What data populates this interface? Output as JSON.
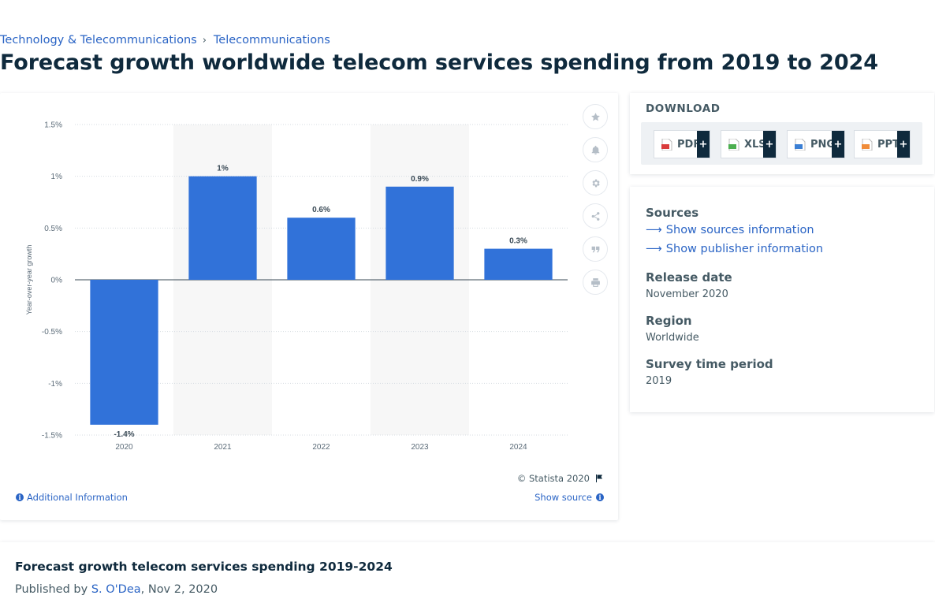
{
  "breadcrumb": {
    "items": [
      "Technology & Telecommunications",
      "Telecommunications"
    ],
    "separator": "›"
  },
  "page_title": "Forecast growth worldwide telecom services spending from 2019 to 2024",
  "chart_data": {
    "type": "bar",
    "categories": [
      "2020",
      "2021",
      "2022",
      "2023",
      "2024"
    ],
    "values": [
      -1.4,
      1.0,
      0.6,
      0.9,
      0.3
    ],
    "data_labels": [
      "-1.4%",
      "1%",
      "0.6%",
      "0.9%",
      "0.3%"
    ],
    "title": "",
    "xlabel": "",
    "ylabel": "Year-over-year growth",
    "ylim": [
      -1.5,
      1.5
    ],
    "yticks": [
      1.5,
      1.0,
      0.5,
      0.0,
      -0.5,
      -1.0,
      -1.5
    ],
    "ytick_labels": [
      "1.5%",
      "1%",
      "0.5%",
      "0%",
      "-0.5%",
      "-1%",
      "-1.5%"
    ],
    "grid": true,
    "bar_color": "#3172d9",
    "band_color": "#f7f7f7"
  },
  "chart_card": {
    "copyright": "© Statista 2020",
    "additional_info": "Additional Information",
    "show_source": "Show source",
    "tools": [
      "star-icon",
      "bell-icon",
      "gear-icon",
      "share-icon",
      "quote-icon",
      "print-icon"
    ]
  },
  "download": {
    "title": "DOWNLOAD",
    "formats": [
      {
        "label": "PDF",
        "color": "#d93c3c"
      },
      {
        "label": "XLS",
        "color": "#4caf50"
      },
      {
        "label": "PNG",
        "color": "#3b7fd4"
      },
      {
        "label": "PPT",
        "color": "#f08c3a"
      }
    ],
    "plus": "+"
  },
  "sources": {
    "label": "Sources",
    "show_sources": "Show sources information",
    "show_publisher": "Show publisher information"
  },
  "release_date": {
    "label": "Release date",
    "value": "November 2020"
  },
  "region": {
    "label": "Region",
    "value": "Worldwide"
  },
  "survey_period": {
    "label": "Survey time period",
    "value": "2019"
  },
  "bottom": {
    "title": "Forecast growth telecom services spending 2019-2024",
    "published_by": "Published by",
    "author": "S. O'Dea",
    "date": ", Nov 2, 2020"
  }
}
